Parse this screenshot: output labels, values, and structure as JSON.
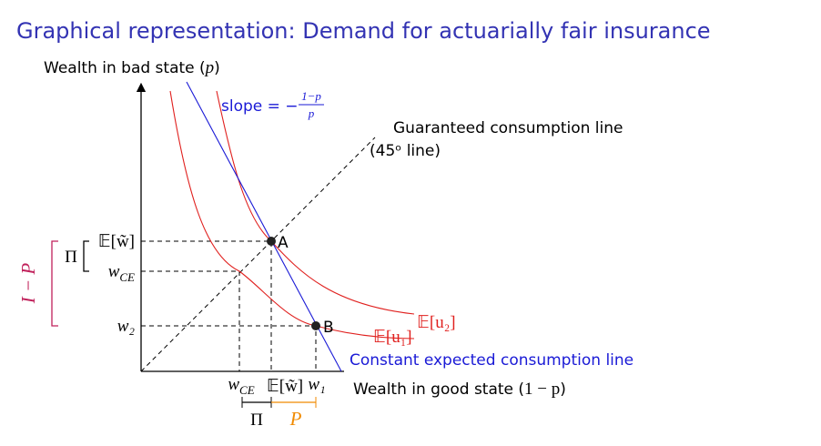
{
  "title": "Graphical representation: Demand for actuarially fair insurance",
  "y_axis_label": {
    "text": "Wealth in bad state (",
    "var": "p",
    "close": ")"
  },
  "x_axis_label": {
    "text": "Wealth in good state (",
    "var": "1 − p",
    "close": ")"
  },
  "slope_label": {
    "text": "slope = −",
    "numerator": "1−p",
    "denominator": "p"
  },
  "guaranteed_line": {
    "line1": "Guaranteed consumption line",
    "line2": "(45ᵒ line)"
  },
  "constant_line": "Constant expected consumption line",
  "points": {
    "a": "A",
    "b": "B"
  },
  "curves": {
    "u2": "𝔼[u₂]",
    "u1": "𝔼[u₁]"
  },
  "y_ticks": {
    "expected": "𝔼[w̃]",
    "wce": {
      "base": "w",
      "sub": "CE"
    },
    "w2": "w₂"
  },
  "x_ticks": {
    "wce": {
      "base": "w",
      "sub": "CE"
    },
    "expected": "𝔼[w̃]",
    "w1": "w₁"
  },
  "brackets": {
    "pi_left": "Π",
    "i_minus_p": "I − P",
    "pi_bottom": "Π",
    "p_bottom": "P"
  }
}
